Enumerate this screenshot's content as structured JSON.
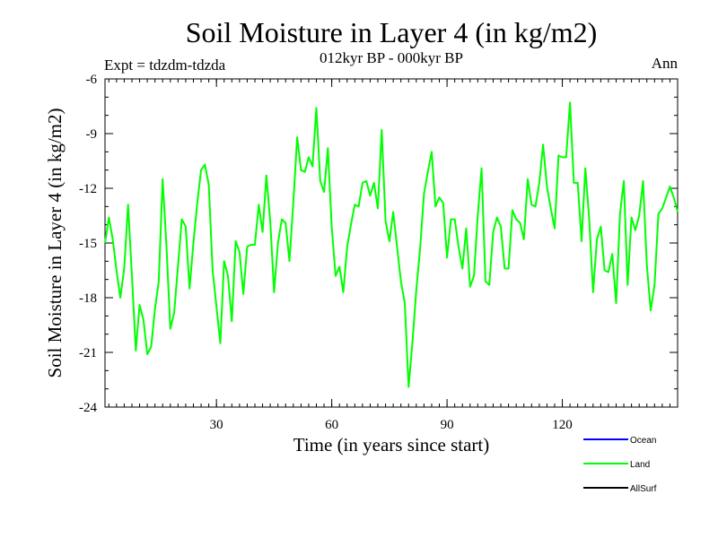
{
  "chart_data": {
    "type": "line",
    "title": "Soil Moisture in Layer 4 (in kg/m2)",
    "subtitle": "012kyr BP - 000kyr BP",
    "experiment": "Expt = tdzdm-tdzda",
    "period": "Ann",
    "xlabel": "Time (in years since start)",
    "ylabel": "Soil Moisture in Layer 4 (in kg/m2)",
    "xlim": [
      1,
      150
    ],
    "ylim": [
      -24,
      -6
    ],
    "xticks": [
      30,
      60,
      90,
      120
    ],
    "yticks": [
      -6,
      -9,
      -12,
      -15,
      -18,
      -21,
      -24
    ],
    "series": [
      {
        "name": "Ocean",
        "color": "#0000ff",
        "values": []
      },
      {
        "name": "Land",
        "color": "#00ff00",
        "x": [
          1,
          2,
          3,
          4,
          5,
          6,
          7,
          8,
          9,
          10,
          11,
          12,
          13,
          14,
          15,
          16,
          17,
          18,
          19,
          20,
          21,
          22,
          23,
          24,
          25,
          26,
          27,
          28,
          29,
          30,
          31,
          32,
          33,
          34,
          35,
          36,
          37,
          38,
          39,
          40,
          41,
          42,
          43,
          44,
          45,
          46,
          47,
          48,
          49,
          50,
          51,
          52,
          53,
          54,
          55,
          56,
          57,
          58,
          59,
          60,
          61,
          62,
          63,
          64,
          65,
          66,
          67,
          68,
          69,
          70,
          71,
          72,
          73,
          74,
          75,
          76,
          77,
          78,
          79,
          80,
          81,
          82,
          83,
          84,
          85,
          86,
          87,
          88,
          89,
          90,
          91,
          92,
          93,
          94,
          95,
          96,
          97,
          98,
          99,
          100,
          101,
          102,
          103,
          104,
          105,
          106,
          107,
          108,
          109,
          110,
          111,
          112,
          113,
          114,
          115,
          116,
          117,
          118,
          119,
          120,
          121,
          122,
          123,
          124,
          125,
          126,
          127,
          128,
          129,
          130,
          131,
          132,
          133,
          134,
          135,
          136,
          137,
          138,
          139,
          140,
          141,
          142,
          143,
          144,
          145,
          146,
          147,
          148,
          149,
          150
        ],
        "values": [
          -15.0,
          -13.6,
          -14.8,
          -16.5,
          -18.0,
          -16.4,
          -12.9,
          -16.8,
          -20.9,
          -18.4,
          -19.2,
          -21.1,
          -20.7,
          -18.6,
          -17.1,
          -11.5,
          -15.2,
          -19.7,
          -18.8,
          -16.2,
          -13.7,
          -14.1,
          -17.5,
          -15.0,
          -12.8,
          -11.0,
          -10.7,
          -11.8,
          -16.5,
          -18.5,
          -20.5,
          -16.0,
          -16.8,
          -19.3,
          -14.9,
          -15.5,
          -17.8,
          -15.2,
          -15.1,
          -15.1,
          -12.9,
          -14.4,
          -11.3,
          -13.8,
          -17.7,
          -15.0,
          -13.7,
          -13.9,
          -16.0,
          -12.8,
          -9.2,
          -11.0,
          -11.1,
          -10.3,
          -10.8,
          -7.6,
          -11.6,
          -12.2,
          -9.8,
          -14.1,
          -16.8,
          -16.3,
          -17.7,
          -15.2,
          -14.0,
          -12.9,
          -13.0,
          -11.7,
          -11.6,
          -12.4,
          -11.7,
          -13.1,
          -8.8,
          -13.8,
          -14.9,
          -13.3,
          -15.2,
          -17.1,
          -18.3,
          -22.9,
          -20.4,
          -17.6,
          -15.3,
          -12.3,
          -11.1,
          -10.0,
          -13.0,
          -12.5,
          -12.8,
          -15.8,
          -13.7,
          -13.7,
          -15.2,
          -16.4,
          -14.2,
          -17.4,
          -16.8,
          -13.5,
          -10.9,
          -17.1,
          -17.3,
          -14.4,
          -13.6,
          -14.1,
          -16.4,
          -16.4,
          -13.2,
          -13.7,
          -13.9,
          -14.8,
          -11.5,
          -12.9,
          -13.0,
          -11.7,
          -9.6,
          -11.9,
          -13.1,
          -14.2,
          -10.2,
          -10.3,
          -10.3,
          -7.3,
          -11.7,
          -11.7,
          -14.9,
          -10.9,
          -13.7,
          -17.7,
          -14.8,
          -14.1,
          -16.5,
          -16.6,
          -15.6,
          -18.3,
          -13.4,
          -11.6,
          -17.3,
          -13.6,
          -14.3,
          -13.5,
          -11.6,
          -16.2,
          -18.7,
          -17.3,
          -13.4,
          -13.1,
          -12.5,
          -11.9,
          -12.5,
          -13.3
        ]
      },
      {
        "name": "AllSurf",
        "color": "#000000",
        "values": []
      }
    ]
  }
}
